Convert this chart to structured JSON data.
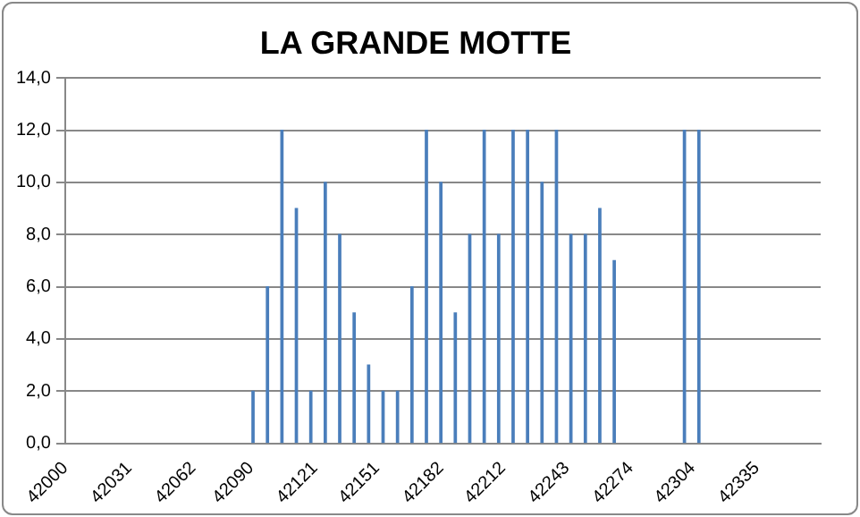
{
  "chart_data": {
    "type": "bar",
    "title": "LA GRANDE MOTTE",
    "x": [
      42091,
      42098,
      42105,
      42112,
      42119,
      42126,
      42133,
      42140,
      42147,
      42154,
      42161,
      42168,
      42175,
      42182,
      42189,
      42196,
      42203,
      42210,
      42217,
      42224,
      42231,
      42238,
      42245,
      42252,
      42259,
      42266,
      42300,
      42307
    ],
    "values": [
      2,
      6,
      12,
      9,
      2,
      10,
      8,
      5,
      3,
      2,
      2,
      6,
      12,
      10,
      5,
      8,
      12,
      8,
      12,
      12,
      10,
      12,
      8,
      8,
      9,
      7,
      12,
      12
    ],
    "color": "#4a7ebb",
    "xlim": [
      42000,
      42366
    ],
    "xticks": [
      42000,
      42031,
      42062,
      42090,
      42121,
      42151,
      42182,
      42212,
      42243,
      42274,
      42304,
      42335
    ],
    "ylim": [
      0,
      14
    ],
    "yticks": [
      {
        "value": 0,
        "label": "0,0"
      },
      {
        "value": 2,
        "label": "2,0"
      },
      {
        "value": 4,
        "label": "4,0"
      },
      {
        "value": 6,
        "label": "6,0"
      },
      {
        "value": 8,
        "label": "8,0"
      },
      {
        "value": 10,
        "label": "10,0"
      },
      {
        "value": 12,
        "label": "12,0"
      },
      {
        "value": 14,
        "label": "14,0"
      }
    ],
    "grid": "y",
    "legend": false
  }
}
